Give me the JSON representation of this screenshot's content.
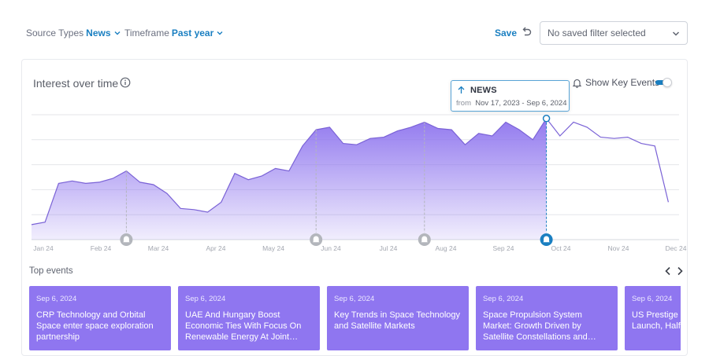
{
  "filters": {
    "source_types_label": "Source Types",
    "source_types_value": "News",
    "timeframe_label": "Timeframe",
    "timeframe_value": "Past year"
  },
  "save_label": "Save",
  "saved_filter_select": {
    "value": "No saved filter selected"
  },
  "card": {
    "title": "Interest over time",
    "show_key_events_label": "Show Key Events",
    "show_key_events_on": true
  },
  "tooltip": {
    "label": "NEWS",
    "from_label": "from",
    "range": "Nov 17, 2023 - Sep 6, 2024"
  },
  "chart_data": {
    "type": "area",
    "x_ticks": [
      "Jan 24",
      "Feb 24",
      "Mar 24",
      "Apr 24",
      "May 24",
      "Jun 24",
      "Jul 24",
      "Aug 24",
      "Sep 24",
      "Oct 24",
      "Nov 24",
      "Dec 24"
    ],
    "ylim": [
      0,
      100
    ],
    "grid": true,
    "series": [
      {
        "values": [
          12,
          14,
          45,
          47,
          45,
          46,
          49,
          55,
          46,
          44,
          37,
          25,
          24,
          22,
          30,
          53,
          48,
          51,
          57,
          55,
          75,
          88,
          90,
          77,
          76,
          81,
          82,
          87,
          90,
          94,
          89,
          88,
          76,
          85,
          83,
          94,
          88,
          80,
          97,
          83,
          94,
          90,
          82,
          81,
          82,
          77,
          75,
          30
        ]
      }
    ],
    "selected_index": 38,
    "key_event_indices": [
      7,
      21,
      29,
      38
    ],
    "colors": {
      "area": "#8c72ee",
      "line": "#7a62d6",
      "selected": "#1a7fc1",
      "marker_gray": "#b3b6bc"
    }
  },
  "top_events": {
    "label": "Top events",
    "items": [
      {
        "date": "Sep 6, 2024",
        "title": "CRP Technology and Orbital Space enter space exploration partnership"
      },
      {
        "date": "Sep 6, 2024",
        "title": "UAE And Hungary Boost Economic Ties With Focus On Renewable Energy At Joint…"
      },
      {
        "date": "Sep 6, 2024",
        "title": "Key Trends in Space Technology and Satellite Markets"
      },
      {
        "date": "Sep 6, 2024",
        "title": "Space Propulsion System Market: Growth Driven by Satellite Constellations and…"
      },
      {
        "date": "Sep 6, 2024",
        "title": "US Prestige a… US Moon Lan… Launch, Half…"
      }
    ]
  }
}
